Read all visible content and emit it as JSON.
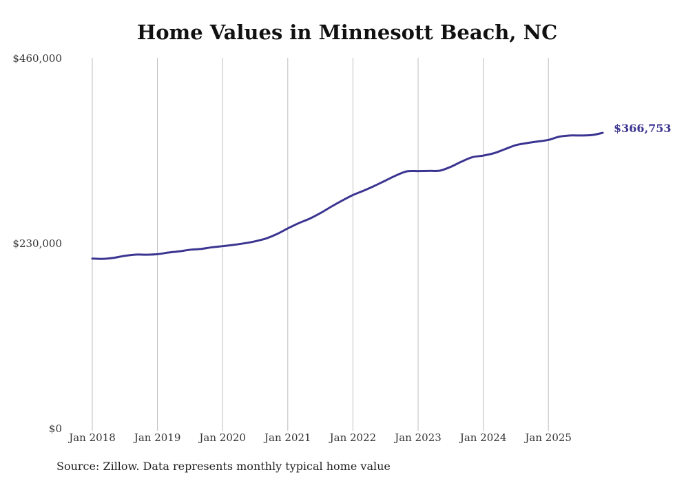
{
  "chart_data": {
    "type": "line",
    "title": "Home Values in Minnesott Beach, NC",
    "xlabel": "",
    "ylabel": "",
    "x_tick_labels": [
      "Jan 2018",
      "Jan 2019",
      "Jan 2020",
      "Jan 2021",
      "Jan 2022",
      "Jan 2023",
      "Jan 2024",
      "Jan 2025"
    ],
    "y_tick_labels": [
      "$0",
      "$230,000",
      "$460,000"
    ],
    "y_ticks": [
      0,
      230000,
      460000
    ],
    "ylim": [
      0,
      460000
    ],
    "x_start": "Jan 2018",
    "months_per_point": 2,
    "grid": "vertical",
    "series": [
      {
        "name": "Typical home value",
        "color": "#3b3591",
        "values": [
          210500,
          210200,
          211500,
          214000,
          215500,
          215400,
          216000,
          218000,
          219500,
          221500,
          222500,
          224500,
          226000,
          227500,
          229500,
          232000,
          235500,
          241000,
          248000,
          254500,
          260000,
          267000,
          275000,
          282500,
          289500,
          295000,
          301000,
          307500,
          314000,
          319000,
          319200,
          319500,
          319800,
          324500,
          331000,
          336500,
          338500,
          341500,
          346500,
          351500,
          354000,
          356000,
          358000,
          362000,
          363500,
          363500,
          364000,
          366753
        ]
      }
    ],
    "end_label": "$366,753"
  },
  "footer": {
    "source": "Source: Zillow. Data represents monthly typical home value"
  }
}
